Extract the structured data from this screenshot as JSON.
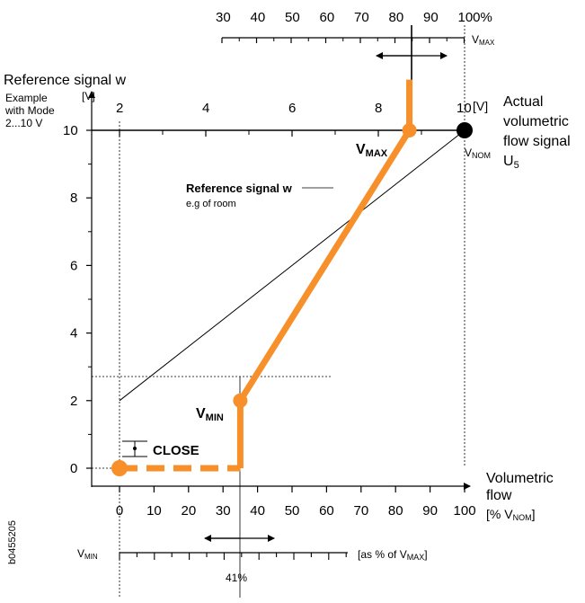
{
  "top_scale": {
    "ticks": [
      "30",
      "40",
      "50",
      "60",
      "70",
      "80",
      "90",
      "100%"
    ],
    "label": "V",
    "label_sub": "MAX"
  },
  "left_axis": {
    "title": "Reference signal w",
    "unit": "[V]",
    "example_lines": [
      "Example",
      "with Mode",
      "2...10 V"
    ],
    "ticks": [
      "0",
      "2",
      "4",
      "6",
      "8",
      "10"
    ]
  },
  "inner_top_axis": {
    "ticks": [
      "2",
      "4",
      "6",
      "8",
      "10"
    ],
    "unit": "[V]"
  },
  "right_label": {
    "lines": [
      "Actual",
      "volumetric",
      "flow signal",
      "U"
    ],
    "sub": "5"
  },
  "v_nom": {
    "label": "V",
    "sub": "NOM"
  },
  "v_max_label": {
    "label": "V",
    "sub": "MAX"
  },
  "v_min_label": {
    "label": "V",
    "sub": "MIN"
  },
  "close_label": "CLOSE",
  "reference_note": {
    "title": "Reference signal w",
    "subtitle": "e.g of room"
  },
  "bottom_axis": {
    "ticks": [
      "0",
      "10",
      "20",
      "30",
      "40",
      "50",
      "60",
      "70",
      "80",
      "90",
      "100"
    ],
    "title_lines": [
      "Volumetric",
      "flow"
    ],
    "unit_prefix": "[% V",
    "unit_sub": "NOM",
    "unit_suffix": "]"
  },
  "bottom_scale": {
    "label": "V",
    "label_sub": "MIN",
    "unit_prefix": "[as % of V",
    "unit_sub": "MAX",
    "unit_suffix": "]",
    "marker_value": "41%"
  },
  "code": "b0455205",
  "colors": {
    "orange": "#f7902a",
    "black": "#000000"
  },
  "chart_data": {
    "type": "line",
    "x_unit": "% of V NOM",
    "y_unit": "V",
    "xlim": [
      0,
      100
    ],
    "ylim": [
      0,
      10
    ],
    "series": [
      {
        "points": [
          [
            0,
            2
          ],
          [
            100,
            10
          ]
        ]
      },
      {
        "points": [
          [
            0,
            0
          ],
          [
            35,
            0
          ],
          [
            35,
            2
          ],
          [
            84,
            10
          ],
          [
            84,
            11.5
          ]
        ]
      }
    ]
  }
}
